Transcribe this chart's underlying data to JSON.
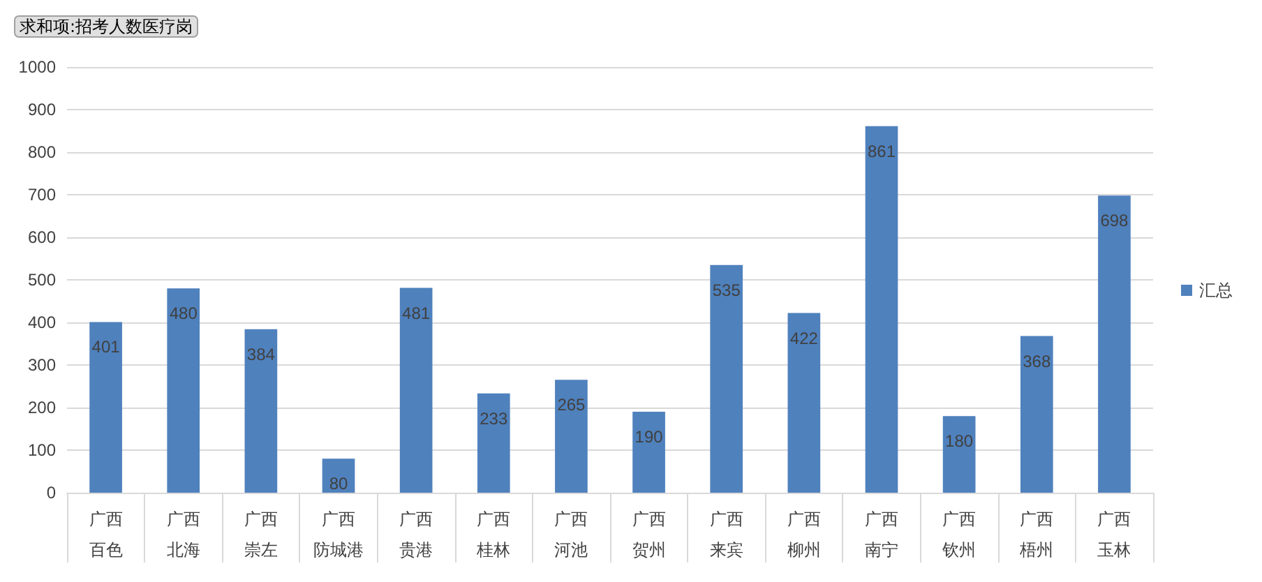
{
  "chart_data": {
    "type": "bar",
    "title": "求和项:招考人数医疗岗",
    "categories": [
      "广西百色",
      "广西北海",
      "广西崇左",
      "广西防城港",
      "广西贵港",
      "广西桂林",
      "广西河池",
      "广西贺州",
      "广西来宾",
      "广西柳州",
      "广西南宁",
      "广西钦州",
      "广西梧州",
      "广西玉林"
    ],
    "series": [
      {
        "name": "汇总",
        "color": "#4f81bd",
        "values": [
          401,
          480,
          384,
          80,
          481,
          233,
          265,
          190,
          535,
          422,
          861,
          180,
          368,
          698
        ]
      }
    ],
    "ylim": [
      0,
      1000
    ],
    "yticks": [
      0,
      100,
      200,
      300,
      400,
      500,
      600,
      700,
      800,
      900,
      1000
    ],
    "grid": "y",
    "legend": "right",
    "data_labels": true
  }
}
